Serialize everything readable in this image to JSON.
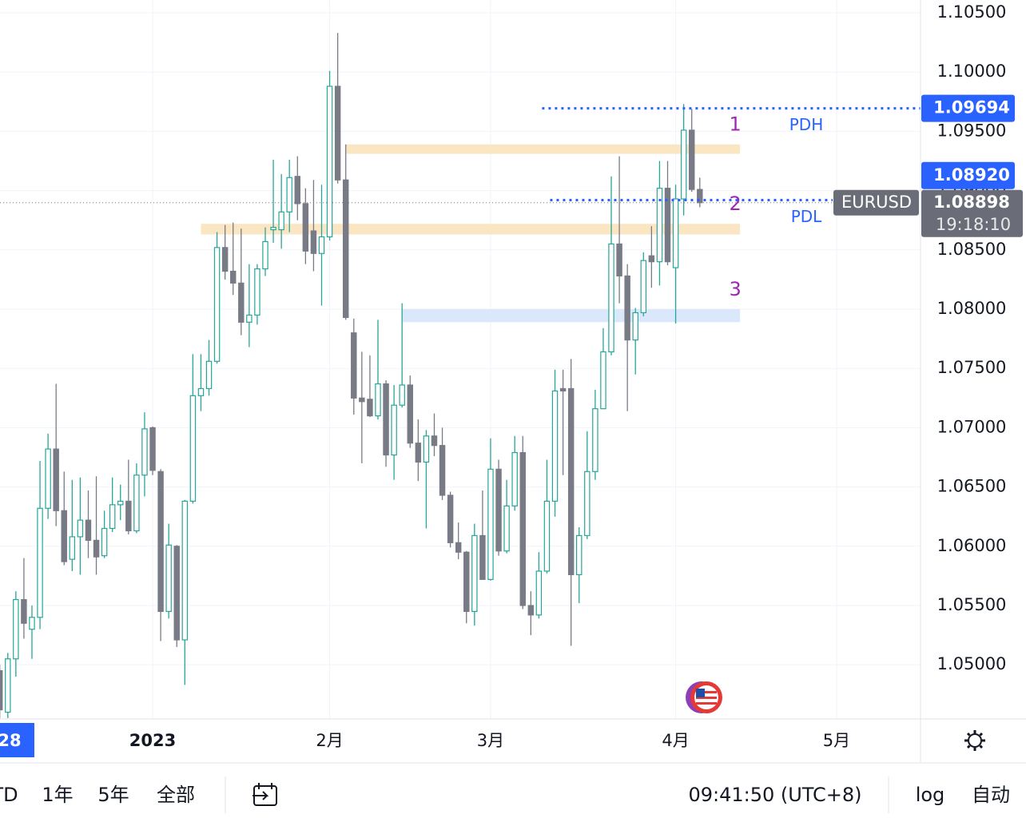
{
  "chart_data": {
    "type": "candlestick",
    "symbol": "EURUSD",
    "countdown": "19:18:10",
    "crosshair_label": "28",
    "up_color": "#26a69a",
    "down_color": "#787b86",
    "open": [
      1.0495,
      1.046,
      1.0505,
      1.0555,
      1.053,
      1.054,
      1.0632,
      1.0682,
      1.063,
      1.0589,
      1.0608,
      1.0622,
      1.0605,
      1.0592,
      1.0615,
      1.0635,
      1.0638,
      1.0613,
      1.066,
      1.07,
      1.0663,
      1.0545,
      1.06,
      1.0521,
      1.0638,
      1.0727,
      1.0733,
      1.0756,
      1.0852,
      1.0832,
      1.0822,
      1.0789,
      1.0795,
      1.0834,
      1.0867,
      1.0867,
      1.0882,
      1.0912,
      1.0889,
      1.0866,
      1.0847,
      1.0861,
      1.0988,
      1.0909,
      1.078,
      1.0725,
      1.0724,
      1.071,
      1.0737,
      1.0677,
      1.0719,
      1.0736,
      1.0687,
      1.0671,
      1.0693,
      1.0685,
      1.0643,
      1.0603,
      1.0595,
      1.0545,
      1.0609,
      1.0572,
      1.0665,
      1.0596,
      1.0634,
      1.0679,
      1.055,
      1.0542,
      1.0579,
      1.0638,
      1.0733,
      1.0733,
      1.0576,
      1.0609,
      1.0663,
      1.0716,
      1.0764,
      1.0855,
      1.0828,
      1.0774,
      1.0797,
      1.0845,
      1.084,
      1.0902,
      1.0835,
      1.0893,
      1.0951,
      1.0901
    ],
    "high": [
      1.05,
      1.051,
      1.0562,
      1.059,
      1.055,
      1.0672,
      1.0695,
      1.0737,
      1.0663,
      1.0656,
      1.0658,
      1.0647,
      1.0659,
      1.063,
      1.0658,
      1.0652,
      1.0673,
      1.067,
      1.0713,
      1.0701,
      1.0665,
      1.0619,
      1.0601,
      1.0639,
      1.0762,
      1.0762,
      1.0774,
      1.0865,
      1.0871,
      1.0873,
      1.0868,
      1.0838,
      1.0838,
      1.0869,
      1.0926,
      1.0914,
      1.0926,
      1.0929,
      1.0902,
      1.0909,
      1.0905,
      1.1001,
      1.1033,
      1.0939,
      1.0792,
      1.0764,
      1.0761,
      1.0791,
      1.074,
      1.0736,
      1.0805,
      1.0744,
      1.0707,
      1.0698,
      1.0712,
      1.07,
      1.0646,
      1.062,
      1.0596,
      1.0619,
      1.0647,
      1.0691,
      1.0673,
      1.0656,
      1.0693,
      1.0693,
      1.0562,
      1.0595,
      1.0673,
      1.0749,
      1.0749,
      1.0758,
      1.0616,
      1.0697,
      1.0732,
      1.0784,
      1.0912,
      1.0929,
      1.0838,
      1.0801,
      1.0848,
      1.087,
      1.0925,
      1.0925,
      1.0905,
      1.0973,
      1.0969,
      1.0911
    ],
    "low": [
      1.0455,
      1.0455,
      1.049,
      1.0522,
      1.0505,
      1.053,
      1.0623,
      1.0617,
      1.0584,
      1.0579,
      1.0576,
      1.059,
      1.0576,
      1.059,
      1.0612,
      1.0622,
      1.061,
      1.0611,
      1.0642,
      1.066,
      1.052,
      1.0539,
      1.0515,
      1.0483,
      1.0636,
      1.0714,
      1.0727,
      1.0754,
      1.0825,
      1.0812,
      1.0778,
      1.0768,
      1.0787,
      1.0828,
      1.0856,
      1.0851,
      1.0865,
      1.0875,
      1.0838,
      1.0832,
      1.0803,
      1.0858,
      1.0906,
      1.0791,
      1.0711,
      1.067,
      1.0709,
      1.0707,
      1.0667,
      1.0656,
      1.0717,
      1.0683,
      1.0655,
      1.0615,
      1.0676,
      1.0639,
      1.0599,
      1.0589,
      1.0535,
      1.0533,
      1.0572,
      1.0571,
      1.0592,
      1.0594,
      1.063,
      1.0547,
      1.0525,
      1.0539,
      1.0577,
      1.0625,
      1.066,
      1.0516,
      1.0552,
      1.0606,
      1.0656,
      1.0716,
      1.0761,
      1.0805,
      1.0714,
      1.0745,
      1.0794,
      1.0818,
      1.082,
      1.0837,
      1.0788,
      1.0879,
      1.0899,
      1.0886
    ],
    "close": [
      1.0462,
      1.0505,
      1.0555,
      1.0535,
      1.054,
      1.0632,
      1.0682,
      1.063,
      1.0587,
      1.0608,
      1.0622,
      1.0605,
      1.0591,
      1.0615,
      1.0635,
      1.0638,
      1.0613,
      1.066,
      1.0699,
      1.0664,
      1.0545,
      1.0601,
      1.0521,
      1.0638,
      1.0727,
      1.0733,
      1.0756,
      1.0852,
      1.0832,
      1.0822,
      1.0789,
      1.0795,
      1.0834,
      1.0857,
      1.0869,
      1.0882,
      1.0911,
      1.0889,
      1.0849,
      1.0847,
      1.0861,
      1.0988,
      1.0909,
      1.0793,
      1.0725,
      1.0722,
      1.071,
      1.0737,
      1.0677,
      1.0719,
      1.0736,
      1.0687,
      1.0671,
      1.0693,
      1.0685,
      1.0643,
      1.0603,
      1.0595,
      1.0545,
      1.0609,
      1.0572,
      1.0665,
      1.0596,
      1.0634,
      1.0679,
      1.055,
      1.0542,
      1.0579,
      1.0638,
      1.0731,
      1.0731,
      1.0576,
      1.0609,
      1.0663,
      1.0716,
      1.0764,
      1.0855,
      1.0828,
      1.0774,
      1.0797,
      1.0841,
      1.084,
      1.0902,
      1.084,
      1.0893,
      1.0951,
      1.0901,
      1.08898
    ],
    "last_price": 1.08898,
    "xlim": [
      0.03,
      114.43
    ],
    "xticks": [
      {
        "value": 19,
        "label": "2023"
      },
      {
        "value": 41,
        "label": "2月"
      },
      {
        "value": 61,
        "label": "3月"
      },
      {
        "value": 84,
        "label": "4月"
      },
      {
        "value": 104,
        "label": "5月"
      }
    ],
    "ylim": [
      1.04543,
      1.10608
    ],
    "yticks": [
      {
        "value": 1.105,
        "label": "1.10500"
      },
      {
        "value": 1.1,
        "label": "1.10000"
      },
      {
        "value": 1.095,
        "label": "1.09500"
      },
      {
        "value": 1.09,
        "label": "1.09000"
      },
      {
        "value": 1.085,
        "label": "1.08500"
      },
      {
        "value": 1.08,
        "label": "1.08000"
      },
      {
        "value": 1.075,
        "label": "1.07500"
      },
      {
        "value": 1.07,
        "label": "1.07000"
      },
      {
        "value": 1.065,
        "label": "1.06500"
      },
      {
        "value": 1.06,
        "label": "1.06000"
      },
      {
        "value": 1.055,
        "label": "1.05500"
      },
      {
        "value": 1.05,
        "label": "1.05000"
      }
    ],
    "grid": true,
    "zones": [
      {
        "label": "1",
        "top": 1.0939,
        "bottom": 1.0931,
        "start": 43,
        "end": 92,
        "color": "#fbe6c4"
      },
      {
        "label": "2",
        "top": 1.0872,
        "bottom": 1.0863,
        "start": 25,
        "end": 92,
        "color": "#fbe6c4"
      },
      {
        "label": "3",
        "top": 1.08,
        "bottom": 1.0789,
        "start": 50,
        "end": 92,
        "color": "#dbe8fb"
      }
    ],
    "levels": [
      {
        "name": "PDH",
        "value": 1.09694,
        "start": 67,
        "color": "#2962ff"
      },
      {
        "name": "PDL",
        "value": {
          "value": 1.0892,
          "label": "1.08920"
        },
        "start": 68,
        "color": "#2962ff"
      }
    ]
  },
  "toolbar": {
    "ranges": [
      "TD",
      "1年",
      "5年",
      "全部"
    ],
    "clock": "09:41:50 (UTC+8)",
    "log": "log",
    "auto": "自动"
  }
}
